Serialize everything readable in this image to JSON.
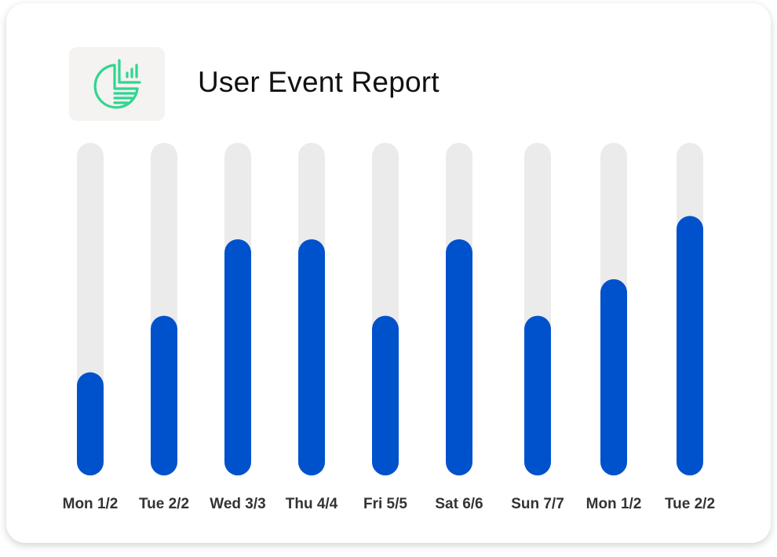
{
  "header": {
    "title": "User Event Report",
    "icon": "pie-chart-report-icon"
  },
  "colors": {
    "bar": "#0052cc",
    "track": "#ebebeb",
    "icon": "#2fd68f",
    "icon_tile": "#f5f2f2"
  },
  "chart_data": {
    "type": "bar",
    "title": "User Event Report",
    "xlabel": "",
    "ylabel": "",
    "categories": [
      "Mon 1/2",
      "Tue 2/2",
      "Wed 3/3",
      "Thu 4/4",
      "Fri 5/5",
      "Sat 6/6",
      "Sun 7/7",
      "Mon 1/2",
      "Tue 2/2"
    ],
    "values": [
      31,
      48,
      71,
      71,
      48,
      71,
      48,
      59,
      78
    ],
    "ylim": [
      0,
      100
    ],
    "grid": false,
    "legend": "none"
  }
}
